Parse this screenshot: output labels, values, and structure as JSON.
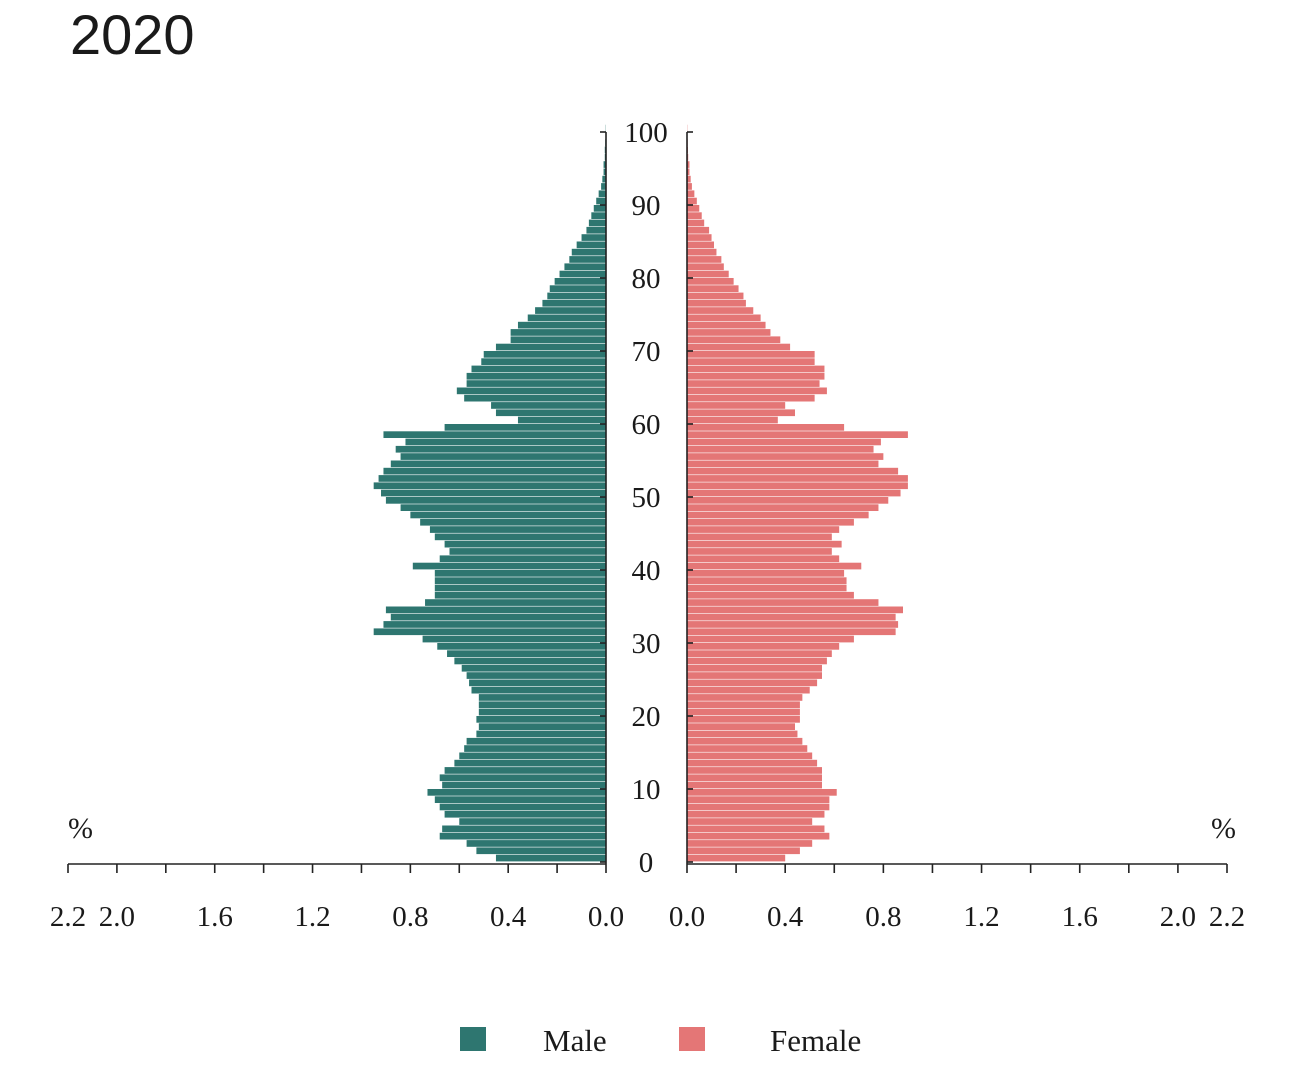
{
  "chart_data": {
    "type": "bar",
    "orientation": "horizontal",
    "title": "2020",
    "y_ticks": [
      "0",
      "10",
      "20",
      "30",
      "40",
      "50",
      "60",
      "70",
      "80",
      "90",
      "100"
    ],
    "ylim": [
      0,
      100
    ],
    "x_ticks_male": [
      "2.2",
      "2.0",
      "1.6",
      "1.2",
      "0.8",
      "0.4",
      "0.0"
    ],
    "x_ticks_female": [
      "0.0",
      "0.4",
      "0.8",
      "1.2",
      "1.6",
      "2.0",
      "2.2"
    ],
    "xlim": [
      0,
      2.2
    ],
    "unit_left": "%",
    "unit_right": "%",
    "legend_position": "bottom-center",
    "ages": [
      0,
      1,
      2,
      3,
      4,
      5,
      6,
      7,
      8,
      9,
      10,
      11,
      12,
      13,
      14,
      15,
      16,
      17,
      18,
      19,
      20,
      21,
      22,
      23,
      24,
      25,
      26,
      27,
      28,
      29,
      30,
      31,
      32,
      33,
      34,
      35,
      36,
      37,
      38,
      39,
      40,
      41,
      42,
      43,
      44,
      45,
      46,
      47,
      48,
      49,
      50,
      51,
      52,
      53,
      54,
      55,
      56,
      57,
      58,
      59,
      60,
      61,
      62,
      63,
      64,
      65,
      66,
      67,
      68,
      69,
      70,
      71,
      72,
      73,
      74,
      75,
      76,
      77,
      78,
      79,
      80,
      81,
      82,
      83,
      84,
      85,
      86,
      87,
      88,
      89,
      90,
      91,
      92,
      93,
      94,
      95,
      96,
      97,
      98,
      99,
      100
    ],
    "series": [
      {
        "name": "Male",
        "color": "#2e7670",
        "values": [
          0.45,
          0.53,
          0.57,
          0.68,
          0.67,
          0.6,
          0.66,
          0.68,
          0.7,
          0.73,
          0.67,
          0.68,
          0.66,
          0.62,
          0.6,
          0.58,
          0.57,
          0.53,
          0.52,
          0.53,
          0.52,
          0.52,
          0.52,
          0.55,
          0.56,
          0.57,
          0.59,
          0.62,
          0.65,
          0.69,
          0.75,
          0.95,
          0.91,
          0.88,
          0.9,
          0.74,
          0.7,
          0.7,
          0.7,
          0.7,
          0.79,
          0.68,
          0.64,
          0.66,
          0.7,
          0.72,
          0.76,
          0.8,
          0.84,
          0.9,
          0.92,
          0.95,
          0.93,
          0.91,
          0.88,
          0.84,
          0.86,
          0.82,
          0.91,
          0.66,
          0.36,
          0.45,
          0.47,
          0.58,
          0.61,
          0.57,
          0.57,
          0.55,
          0.51,
          0.5,
          0.45,
          0.39,
          0.39,
          0.36,
          0.32,
          0.29,
          0.26,
          0.24,
          0.23,
          0.21,
          0.19,
          0.17,
          0.15,
          0.14,
          0.12,
          0.1,
          0.08,
          0.07,
          0.06,
          0.05,
          0.04,
          0.03,
          0.02,
          0.015,
          0.01,
          0.01,
          0.005,
          0.005,
          0.003,
          0.002,
          0.001
        ]
      },
      {
        "name": "Female",
        "color": "#e47676",
        "values": [
          0.4,
          0.46,
          0.51,
          0.58,
          0.56,
          0.51,
          0.56,
          0.58,
          0.58,
          0.61,
          0.55,
          0.55,
          0.55,
          0.53,
          0.51,
          0.49,
          0.47,
          0.45,
          0.44,
          0.46,
          0.46,
          0.46,
          0.47,
          0.5,
          0.53,
          0.55,
          0.55,
          0.57,
          0.59,
          0.62,
          0.68,
          0.85,
          0.86,
          0.85,
          0.88,
          0.78,
          0.68,
          0.65,
          0.65,
          0.64,
          0.71,
          0.62,
          0.59,
          0.63,
          0.59,
          0.62,
          0.68,
          0.74,
          0.78,
          0.82,
          0.87,
          0.9,
          0.9,
          0.86,
          0.78,
          0.8,
          0.76,
          0.79,
          0.9,
          0.64,
          0.37,
          0.44,
          0.4,
          0.52,
          0.57,
          0.54,
          0.56,
          0.56,
          0.52,
          0.52,
          0.42,
          0.38,
          0.34,
          0.32,
          0.3,
          0.27,
          0.24,
          0.23,
          0.21,
          0.19,
          0.17,
          0.15,
          0.14,
          0.12,
          0.11,
          0.1,
          0.09,
          0.07,
          0.06,
          0.05,
          0.04,
          0.03,
          0.02,
          0.015,
          0.01,
          0.01,
          0.005,
          0.004,
          0.003,
          0.002,
          0.001
        ]
      }
    ]
  },
  "legend": {
    "male_label": "Male",
    "female_label": "Female"
  }
}
